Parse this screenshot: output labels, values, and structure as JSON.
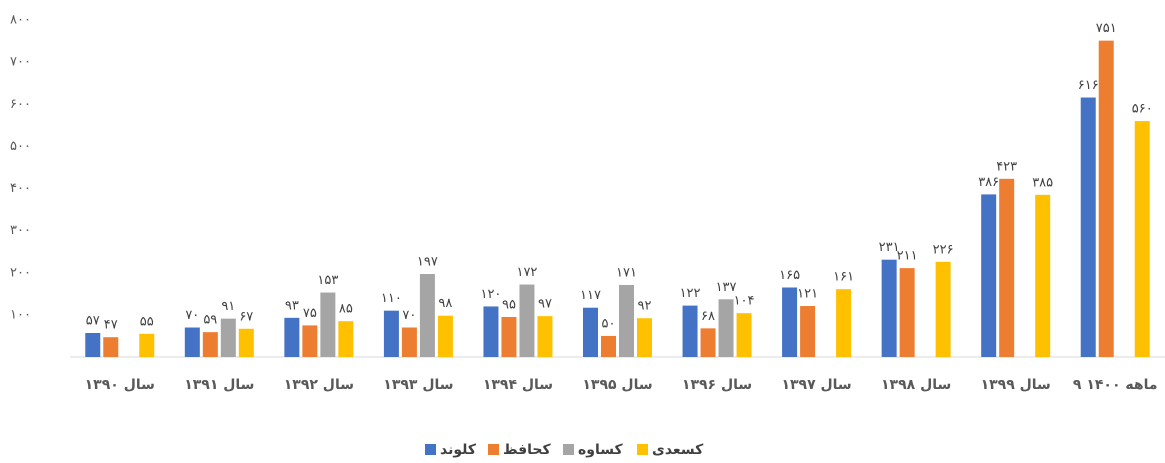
{
  "chart_data": {
    "type": "bar",
    "categories": [
      "سال ۱۳۹۰",
      "سال ۱۳۹۱",
      "سال ۱۳۹۲",
      "سال ۱۳۹۳",
      "سال ۱۳۹۴",
      "سال ۱۳۹۵",
      "سال ۱۳۹۶",
      "سال ۱۳۹۷",
      "سال ۱۳۹۸",
      "سال ۱۳۹۹",
      "۹ ماهه ۱۴۰۰"
    ],
    "series": [
      {
        "name": "کلوند",
        "color": "#4472c4",
        "values": [
          57,
          70,
          93,
          110,
          120,
          117,
          122,
          165,
          231,
          386,
          616
        ],
        "value_labels": [
          "۵۷",
          "۷۰",
          "۹۳",
          "۱۱۰",
          "۱۲۰",
          "۱۱۷",
          "۱۲۲",
          "۱۶۵",
          "۲۳۱",
          "۳۸۶",
          "۶۱۶"
        ]
      },
      {
        "name": "کحافظ",
        "color": "#ed7d31",
        "values": [
          47,
          59,
          75,
          70,
          95,
          50,
          68,
          121,
          211,
          423,
          751
        ],
        "value_labels": [
          "۴۷",
          "۵۹",
          "۷۵",
          "۷۰",
          "۹۵",
          "۵۰",
          "۶۸",
          "۱۲۱",
          "۲۱۱",
          "۴۲۳",
          "۷۵۱"
        ]
      },
      {
        "name": "کساوه",
        "color": "#a5a5a5",
        "values": [
          null,
          91,
          153,
          197,
          172,
          171,
          137,
          null,
          null,
          null,
          null
        ],
        "value_labels": [
          null,
          "۹۱",
          "۱۵۳",
          "۱۹۷",
          "۱۷۲",
          "۱۷۱",
          "۱۳۷",
          null,
          null,
          null,
          null
        ]
      },
      {
        "name": "کسعدی",
        "color": "#ffc000",
        "values": [
          55,
          67,
          85,
          98,
          97,
          92,
          104,
          161,
          226,
          385,
          560
        ],
        "value_labels": [
          "۵۵",
          "۶۷",
          "۸۵",
          "۹۸",
          "۹۷",
          "۹۲",
          "۱۰۴",
          "۱۶۱",
          "۲۲۶",
          "۳۸۵",
          "۵۶۰"
        ]
      }
    ],
    "ylim": [
      0,
      800
    ],
    "yticks": [
      {
        "value": 100,
        "label": "۱۰۰"
      },
      {
        "value": 200,
        "label": "۲۰۰"
      },
      {
        "value": 300,
        "label": "۳۰۰"
      },
      {
        "value": 400,
        "label": "۴۰۰"
      },
      {
        "value": 500,
        "label": "۵۰۰"
      },
      {
        "value": 600,
        "label": "۶۰۰"
      },
      {
        "value": 700,
        "label": "۷۰۰"
      },
      {
        "value": 800,
        "label": "۸۰۰"
      }
    ],
    "grid": false,
    "legend": "bottom"
  }
}
